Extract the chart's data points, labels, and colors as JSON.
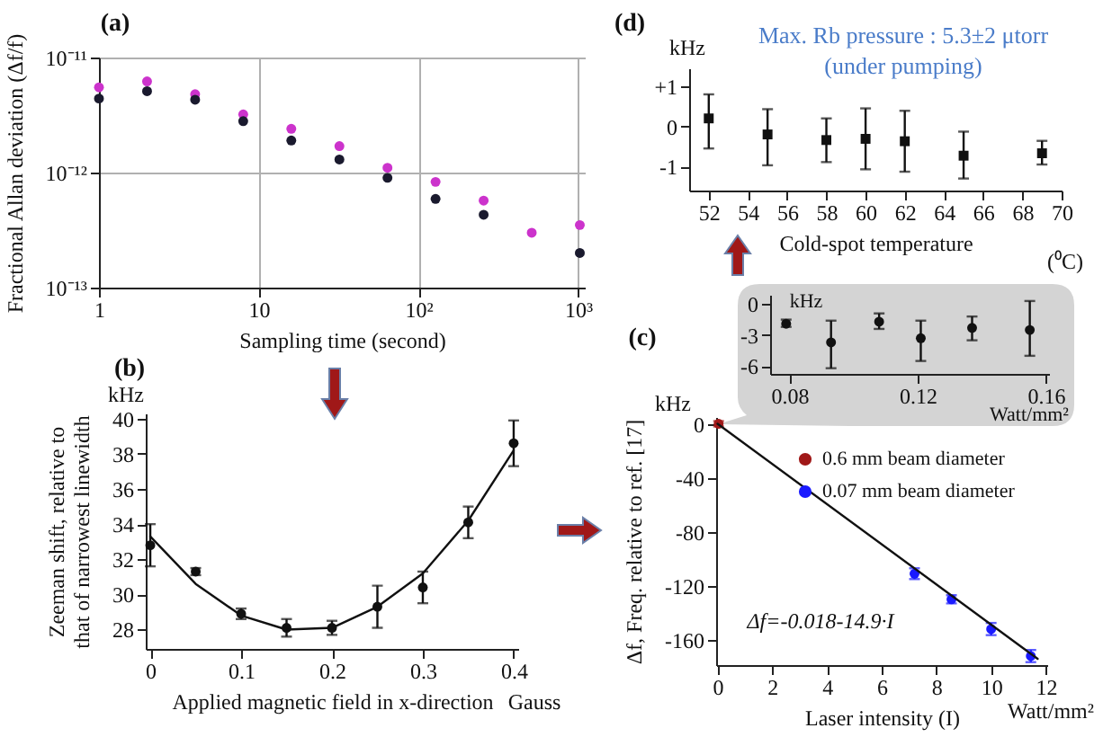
{
  "chart_data": [
    {
      "type": "scatter",
      "title": "(a)",
      "xlabel": "Sampling time (second)",
      "ylabel": "Fractional Allan deviation (Δf/f)",
      "log": "xy",
      "grid": true,
      "marker": "circle",
      "xlim": [
        1,
        1100
      ],
      "xticks": [
        1,
        10,
        {
          "value": 100,
          "label": "10²"
        },
        {
          "value": 1000,
          "label": "10³"
        }
      ],
      "ylim": [
        1e-13,
        1e-11
      ],
      "yticks": [
        {
          "value": 1e-13,
          "label": "10⁻¹³"
        },
        {
          "value": 1e-12,
          "label": "10⁻¹²"
        },
        {
          "value": 1e-11,
          "label": "10⁻¹¹"
        }
      ],
      "x": [
        1,
        2,
        4,
        8,
        16,
        32,
        64,
        128,
        256,
        512,
        1024
      ],
      "series": [
        {
          "color": "#cc33cc",
          "values": [
            5.5e-12,
            6.2e-12,
            4.8e-12,
            3.2e-12,
            2.4e-12,
            1.7e-12,
            1.1e-12,
            8.3e-13,
            5.7e-13,
            3e-13,
            3.5e-13
          ]
        },
        {
          "color": "#1a1a2e",
          "values": [
            4.4e-12,
            5.1e-12,
            4.3e-12,
            2.8e-12,
            1.9e-12,
            1.3e-12,
            9e-13,
            5.9e-13,
            4.3e-13,
            null,
            2e-13
          ]
        }
      ]
    },
    {
      "type": "scatter",
      "title": "(d)",
      "xlabel": "Cold-spot temperature",
      "annotations": [
        "kHz",
        "Max. Rb pressure : 5.3±2 μtorr",
        "(under pumping)",
        "(⁰C)"
      ],
      "marker": "square",
      "xlim": [
        51,
        70
      ],
      "xticks": [
        52,
        54,
        56,
        58,
        60,
        62,
        64,
        66,
        68,
        70
      ],
      "ylim": [
        -1.6,
        1.45
      ],
      "yticks": [
        {
          "value": 1,
          "label": "+1"
        },
        0,
        -1
      ],
      "x": [
        52,
        55,
        58,
        60,
        62,
        65,
        69
      ],
      "series": [
        {
          "color": "#111111",
          "values": [
            0.2,
            -0.2,
            -0.34,
            -0.31,
            -0.37,
            -0.73,
            -0.67
          ],
          "errors": [
            [
              -0.55,
              0.8
            ],
            [
              -0.97,
              0.43
            ],
            [
              -0.89,
              0.2
            ],
            [
              -1.07,
              0.45
            ],
            [
              -1.13,
              0.39
            ],
            [
              -1.3,
              -0.13
            ],
            [
              -0.95,
              -0.36
            ]
          ]
        }
      ]
    },
    {
      "type": "scatter",
      "annotations": [
        "kHz",
        "Watt/mm²"
      ],
      "marker": "circle",
      "xlim": [
        0.074,
        0.161
      ],
      "xticks": [
        0.08,
        0.12,
        0.16
      ],
      "ylim": [
        -6.75,
        0.9
      ],
      "yticks": [
        0,
        -3,
        -6
      ],
      "x": [
        0.079,
        0.093,
        0.108,
        0.121,
        0.137,
        0.155
      ],
      "series": [
        {
          "color": "#111111",
          "values": [
            -1.9,
            -3.7,
            -1.7,
            -3.3,
            -2.3,
            -2.5
          ],
          "errors": [
            [
              -2.2,
              -1.5
            ],
            [
              -6.2,
              -1.6
            ],
            [
              -2.4,
              -0.9
            ],
            [
              -5.5,
              -1.6
            ],
            [
              -3.5,
              -1.2
            ],
            [
              -5,
              0.3
            ]
          ]
        }
      ]
    },
    {
      "type": "scatter",
      "title": "(b)",
      "xlabel": "Applied magnetic field in x-direction",
      "ylabel": "Zeeman shift, relative to that of narrowest linewidth",
      "annotations": [
        "kHz",
        "Gauss"
      ],
      "marker": "circle",
      "xlim": [
        -0.005,
        0.405
      ],
      "xticks": [
        0,
        0.1,
        0.2,
        0.3,
        0.4
      ],
      "ylim": [
        26.9,
        40.3
      ],
      "yticks": [
        28,
        30,
        32,
        34,
        36,
        38,
        40
      ],
      "x": [
        0,
        0.05,
        0.1,
        0.15,
        0.2,
        0.25,
        0.3,
        0.35,
        0.4
      ],
      "series": [
        {
          "color": "#111111",
          "values": [
            32.8,
            31.3,
            28.9,
            28.1,
            28.1,
            29.3,
            30.4,
            34.1,
            38.6
          ],
          "errors": [
            1.2,
            0.2,
            0.3,
            0.5,
            0.4,
            1.2,
            0.9,
            0.9,
            1.3
          ]
        },
        {
          "type": "line",
          "marker": "none",
          "color": "#111111",
          "values": [
            33.3,
            30.6,
            28.8,
            28.0,
            28.1,
            29.3,
            31.2,
            34.2,
            38.2
          ]
        }
      ]
    },
    {
      "type": "scatter",
      "title": "(c)",
      "xlabel": "Laser intensity (I)",
      "ylabel": "Δf, Freq. relative to ref. [17]",
      "annotations": [
        "kHz",
        "Watt/mm²",
        "Δf=-0.018-14.9·I"
      ],
      "legend": "top right",
      "marker": "circle",
      "xlim": [
        -0.05,
        12.05
      ],
      "xticks": [
        0,
        2,
        4,
        6,
        8,
        10,
        12
      ],
      "ylim": [
        -178.7,
        5
      ],
      "yticks": [
        0,
        -40,
        -80,
        -120,
        -160
      ],
      "series": [
        {
          "name": "0.6 mm beam diameter",
          "color": "#a01818",
          "x": [
            0.04
          ],
          "values": [
            0
          ],
          "errors": [
            2
          ]
        },
        {
          "name": "0.07 mm beam diameter",
          "color": "#1a1aff",
          "x": [
            7.2,
            8.55,
            10.0,
            11.45
          ],
          "values": [
            -111,
            -130,
            -152,
            -172
          ],
          "errors": [
            4,
            3,
            4.5,
            4.5
          ]
        },
        {
          "type": "line",
          "marker": "none",
          "color": "#111111",
          "x": [
            0,
            11.7
          ],
          "values": [
            0,
            -174
          ]
        }
      ]
    }
  ]
}
